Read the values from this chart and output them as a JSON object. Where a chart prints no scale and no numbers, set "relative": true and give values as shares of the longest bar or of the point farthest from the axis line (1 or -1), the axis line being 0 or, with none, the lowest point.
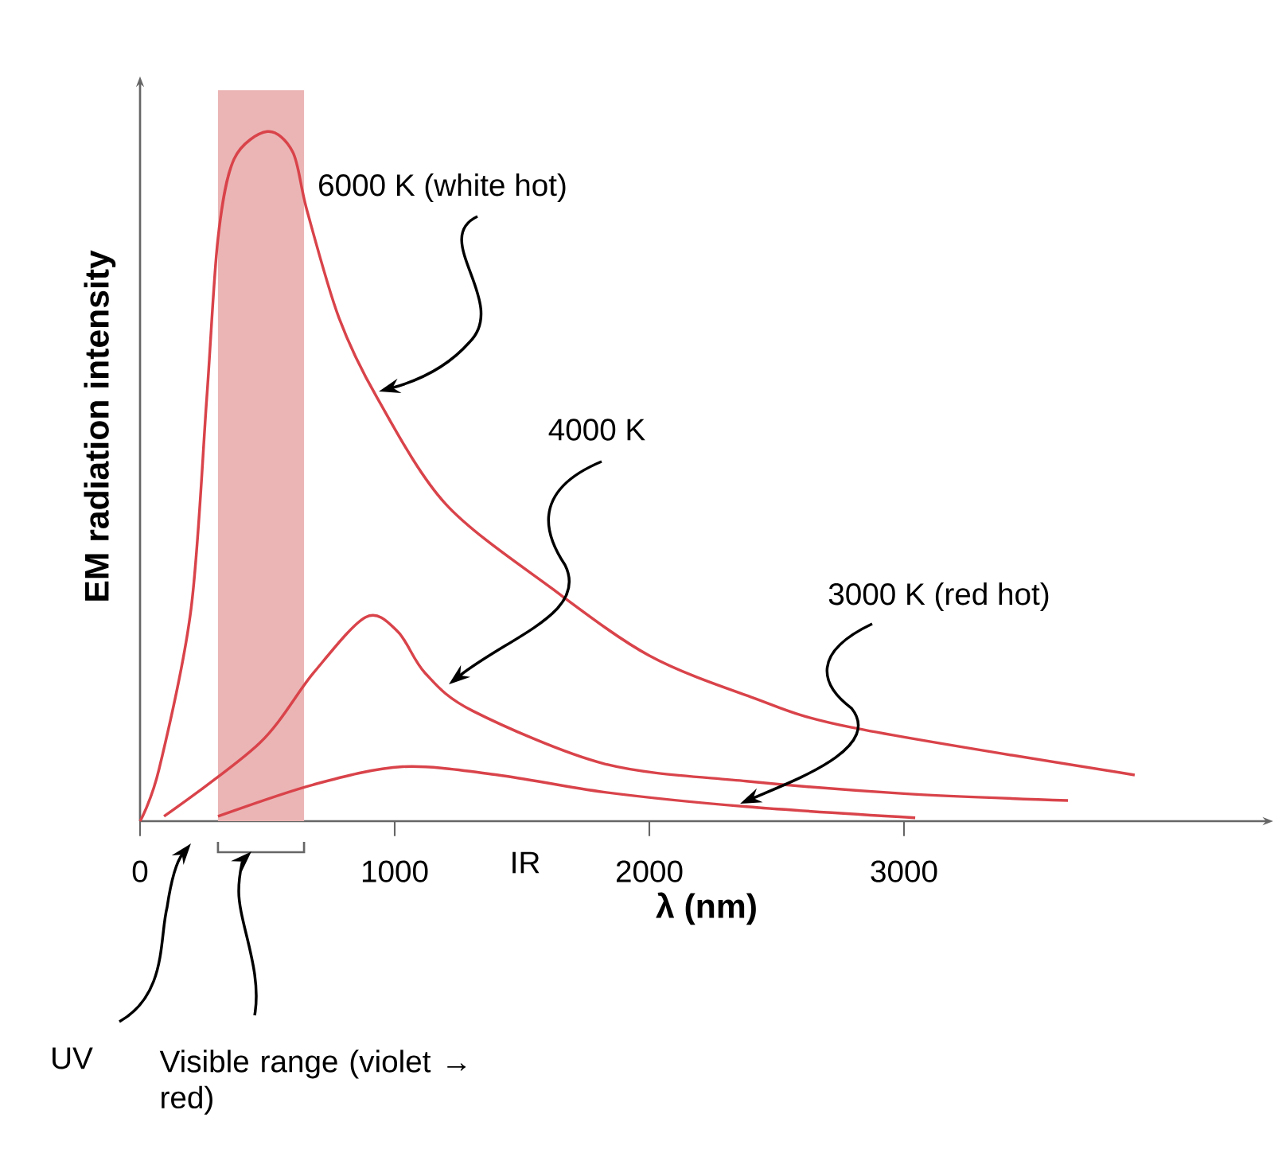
{
  "chart_data": {
    "type": "line",
    "relative": true,
    "xlabel": "λ (nm)",
    "ylabel": "EM radiation intensity",
    "xlim": [
      0,
      4450
    ],
    "xticks": [
      0,
      1000,
      2000,
      3000
    ],
    "bands": [
      {
        "axis": "x",
        "from": 306,
        "to": 644,
        "color": "#ebb5b5"
      }
    ],
    "annotations": [
      "UV",
      "Visible range (violet → red)",
      "IR"
    ],
    "series": [
      {
        "name": "6000 K (white hot)",
        "color": "#d9434a",
        "x": [
          0,
          75,
          200,
          262,
          306,
          369,
          500,
          600,
          656,
          781,
          931,
          1200,
          1619,
          2000,
          2400,
          2794,
          3906
        ],
        "values": [
          0,
          0.076,
          0.307,
          0.614,
          0.845,
          0.96,
          1,
          0.97,
          0.885,
          0.73,
          0.614,
          0.46,
          0.337,
          0.24,
          0.18,
          0.136,
          0.067
        ]
      },
      {
        "name": "4000 K",
        "color": "#d9434a",
        "x": [
          94,
          469,
          681,
          887,
          1012,
          1119,
          1306,
          1825,
          2381,
          3000,
          3644
        ],
        "values": [
          0.007,
          0.113,
          0.215,
          0.296,
          0.275,
          0.215,
          0.16,
          0.083,
          0.058,
          0.04,
          0.03
        ]
      },
      {
        "name": "3000 K (red hot)",
        "color": "#d9434a",
        "x": [
          306,
          681,
          1031,
          1406,
          1825,
          2381,
          3044
        ],
        "values": [
          0.007,
          0.053,
          0.079,
          0.067,
          0.042,
          0.021,
          0.005
        ]
      }
    ]
  }
}
